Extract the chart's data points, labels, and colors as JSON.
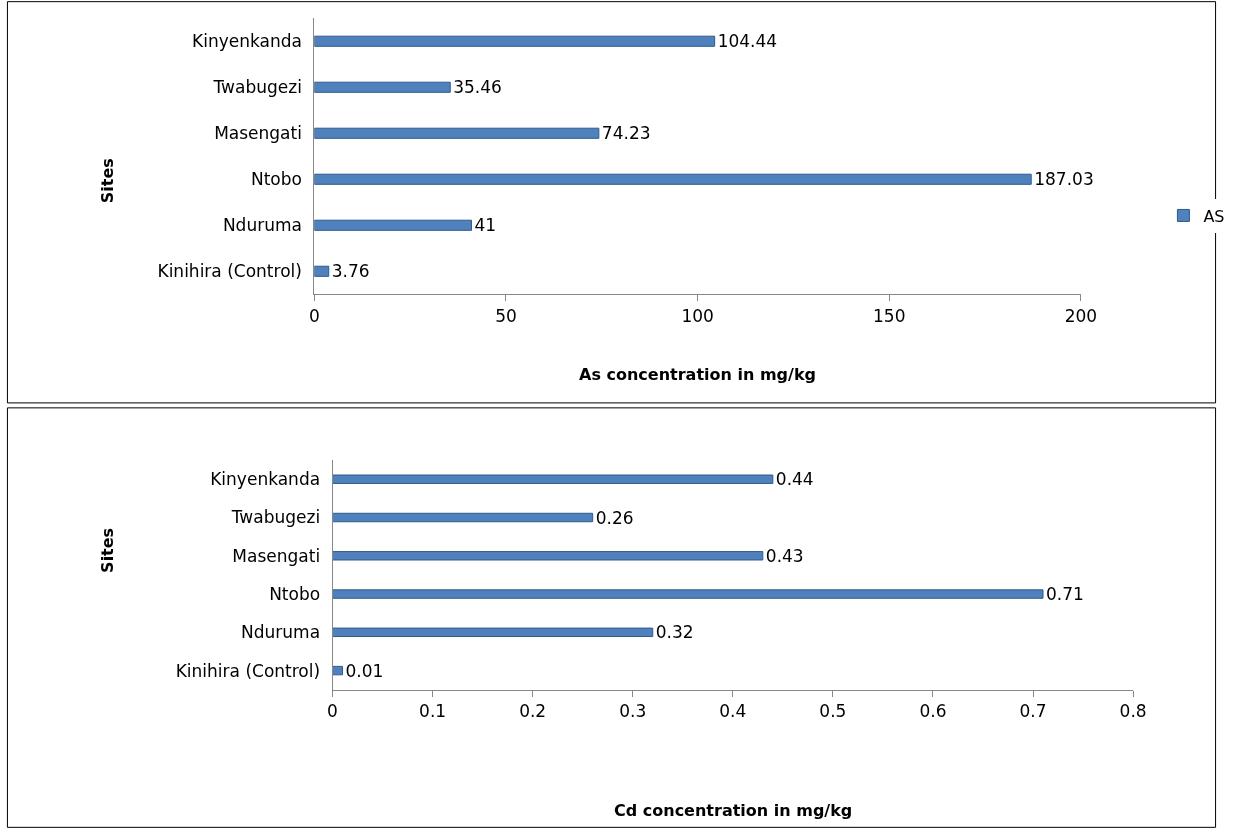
{
  "chart_data": [
    {
      "type": "bar",
      "orientation": "horizontal",
      "categories": [
        "Kinyenkanda",
        "Twabugezi",
        "Masengati",
        "Ntobo",
        "Nduruma",
        "Kinihira (Control)"
      ],
      "series": [
        {
          "name": "AS",
          "color": "#4f81bd",
          "values": [
            104.44,
            35.46,
            74.23,
            187.03,
            41,
            3.76
          ]
        }
      ],
      "xlim": [
        0,
        200
      ],
      "xticks": [
        0,
        50,
        100,
        150,
        200
      ],
      "xlabel": "As concentration in mg/kg",
      "ylabel": "Sites",
      "data_labels": true,
      "legend": "right",
      "grid": false
    },
    {
      "type": "bar",
      "orientation": "horizontal",
      "categories": [
        "Kinyenkanda",
        "Twabugezi",
        "Masengati",
        "Ntobo",
        "Nduruma",
        "Kinihira (Control)"
      ],
      "series": [
        {
          "color": "#4f81bd",
          "values": [
            0.44,
            0.26,
            0.43,
            0.71,
            0.32,
            0.01
          ]
        }
      ],
      "xlim": [
        0,
        0.8
      ],
      "xticks": [
        0,
        0.1,
        0.2,
        0.3,
        0.4,
        0.5,
        0.6,
        0.7,
        0.8
      ],
      "xlabel": "Cd concentration in mg/kg",
      "ylabel": "Sites",
      "data_labels": true,
      "grid": false
    }
  ]
}
